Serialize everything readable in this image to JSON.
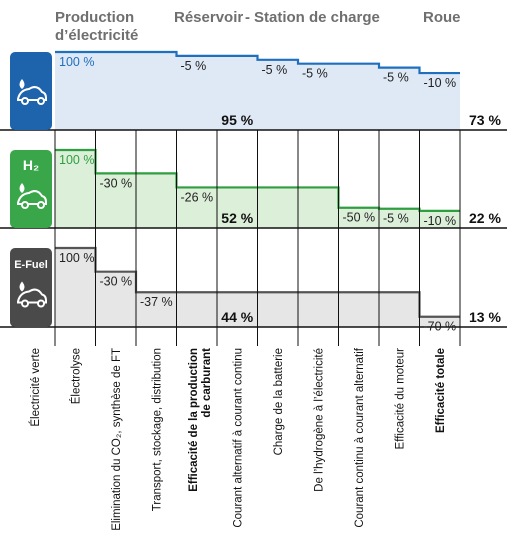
{
  "headers": {
    "production_line1": "Production",
    "production_line2": "d’électricité",
    "reservoir": "Réservoir",
    "separator": "-",
    "station": "Station de charge",
    "wheel": "Roue"
  },
  "categories": [
    {
      "label": "Électricité verte",
      "bold": false
    },
    {
      "label": "Électrolyse",
      "bold": false
    },
    {
      "label": "Elimination du CO₂, synthèse de FT",
      "bold": false
    },
    {
      "label": "Transport, stockage, distribution",
      "bold": false
    },
    {
      "label": "Efficacité de la production",
      "label2": "de carburant",
      "bold": true
    },
    {
      "label": "Courant alternatif à courant continu",
      "bold": false
    },
    {
      "label": "Charge de la batterie",
      "bold": false
    },
    {
      "label": "De l’hydrogène à l’électricité",
      "bold": false
    },
    {
      "label": "Courant continu à courant alternatif",
      "bold": false
    },
    {
      "label": "Efficacité du moteur",
      "bold": false
    },
    {
      "label": "Efficacité totale",
      "bold": true
    }
  ],
  "chart_data": {
    "type": "step-area",
    "panels": [
      {
        "icon": "electric-car-icon",
        "icon_label": "",
        "line_color": "#1f6fbf",
        "fill_color": "#dfe8f5",
        "icon_bg": "#1e64ad",
        "steps": [
          100,
          100,
          100,
          95,
          95,
          90,
          85,
          85,
          80,
          73
        ],
        "step_labels": [
          {
            "text": "100 %",
            "col": 0,
            "color": "#1f6fbf"
          },
          {
            "text": "-5 %",
            "col": 3
          },
          {
            "text": "-5 %",
            "col": 5
          },
          {
            "text": "-5 %",
            "col": 6
          },
          {
            "text": "-5 %",
            "col": 8
          },
          {
            "text": "-10 %",
            "col": 9
          }
        ],
        "production_efficiency": "95 %",
        "total": "73 %"
      },
      {
        "icon": "hydrogen-car-icon",
        "icon_label": "H₂",
        "line_color": "#2f9e41",
        "fill_color": "#dcefd9",
        "icon_bg": "#3aa64a",
        "steps": [
          100,
          70,
          70,
          52,
          52,
          52,
          52,
          26,
          24.7,
          22
        ],
        "step_labels": [
          {
            "text": "100 %",
            "col": 0,
            "color": "#2f9e41"
          },
          {
            "text": "-30 %",
            "col": 1
          },
          {
            "text": "-26 %",
            "col": 3
          },
          {
            "text": "-50 %",
            "col": 7
          },
          {
            "text": "-5 %",
            "col": 8
          },
          {
            "text": "-10 %",
            "col": 9
          }
        ],
        "production_efficiency": "52 %",
        "total": "22 %"
      },
      {
        "icon": "efuel-car-icon",
        "icon_label": "E-Fuel",
        "line_color": "#555555",
        "fill_color": "#e6e6e6",
        "icon_bg": "#4a4a4a",
        "steps": [
          100,
          70,
          44,
          44,
          44,
          44,
          44,
          44,
          44,
          13
        ],
        "step_labels": [
          {
            "text": "100 %",
            "col": 0
          },
          {
            "text": "-30 %",
            "col": 1
          },
          {
            "text": "-37 %",
            "col": 2
          },
          {
            "text": "-70 %",
            "col": 9
          }
        ],
        "production_efficiency": "44 %",
        "total": "13 %"
      }
    ]
  }
}
